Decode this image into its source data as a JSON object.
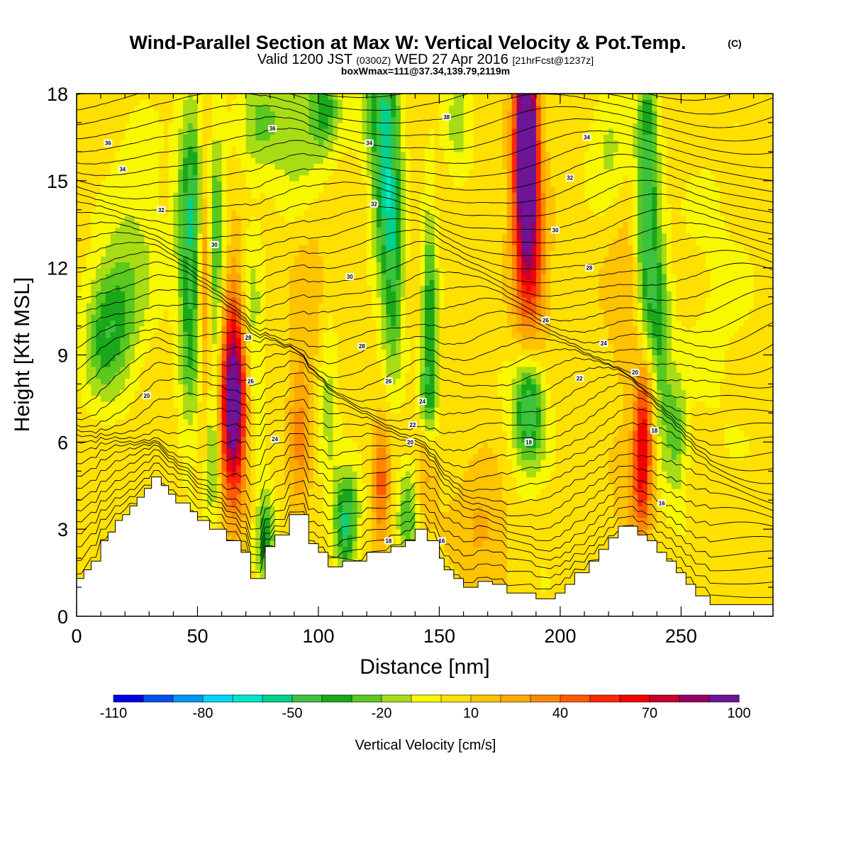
{
  "figure": {
    "title": "Wind-Parallel Section at Max W: Vertical Velocity & Pot.Temp.",
    "title_mark": "(C)",
    "subtitle_valid": "Valid 1200 JST",
    "subtitle_utc": "(0300Z)",
    "subtitle_date": "WED 27 Apr 2016",
    "subtitle_fcst": "[21hrFcst@1237z]",
    "boxwmax": "boxWmax=111@37.34,139.79,2119m",
    "colorbar_label": "Vertical Velocity [cm/s]"
  },
  "chart_data": {
    "type": "heatmap",
    "xlabel": "Distance [nm]",
    "ylabel": "Height [Kft MSL]",
    "xlim": [
      0,
      288
    ],
    "ylim": [
      0,
      18
    ],
    "x_ticks": [
      0,
      50,
      100,
      150,
      200,
      250
    ],
    "x_tick_labels": [
      "0",
      "50",
      "100",
      "150",
      "200",
      "250"
    ],
    "y_ticks": [
      0,
      3,
      6,
      9,
      12,
      15,
      18
    ],
    "y_tick_labels": [
      "0",
      "3",
      "6",
      "9",
      "12",
      "15",
      "18"
    ],
    "colorbar": {
      "levels": [
        -110,
        -100,
        -90,
        -80,
        -70,
        -60,
        -50,
        -40,
        -30,
        -20,
        -10,
        0,
        10,
        20,
        30,
        40,
        50,
        60,
        70,
        80,
        90,
        100
      ],
      "tick_values": [
        -110,
        -80,
        -50,
        -20,
        10,
        40,
        70,
        100
      ],
      "tick_labels": [
        "-110",
        "-80",
        "-50",
        "-20",
        "10",
        "40",
        "70",
        "100"
      ],
      "colors": [
        "#0000e6",
        "#0050f0",
        "#0096f5",
        "#00d7f8",
        "#00e6c8",
        "#00d28c",
        "#3cc23c",
        "#1aa81a",
        "#5ac81e",
        "#a8dc14",
        "#f8f800",
        "#ffe000",
        "#ffc300",
        "#ffa800",
        "#ff8800",
        "#ff5a00",
        "#ff2800",
        "#f50000",
        "#c8002d",
        "#960064",
        "#6e1496"
      ]
    },
    "background_value": 5,
    "terrain": [
      [
        0,
        1.3
      ],
      [
        3,
        1.3
      ],
      [
        3,
        1.6
      ],
      [
        6,
        1.6
      ],
      [
        6,
        1.9
      ],
      [
        10,
        1.9
      ],
      [
        10,
        2.6
      ],
      [
        13,
        2.6
      ],
      [
        13,
        2.9
      ],
      [
        16,
        2.9
      ],
      [
        16,
        3.3
      ],
      [
        19,
        3.3
      ],
      [
        19,
        3.5
      ],
      [
        22,
        3.5
      ],
      [
        22,
        3.8
      ],
      [
        25,
        3.8
      ],
      [
        25,
        4.1
      ],
      [
        28,
        4.1
      ],
      [
        28,
        4.4
      ],
      [
        31,
        4.4
      ],
      [
        31,
        4.8
      ],
      [
        35,
        4.8
      ],
      [
        35,
        4.5
      ],
      [
        38,
        4.5
      ],
      [
        38,
        4.2
      ],
      [
        41,
        4.2
      ],
      [
        41,
        3.9
      ],
      [
        47,
        3.9
      ],
      [
        47,
        3.6
      ],
      [
        50,
        3.6
      ],
      [
        50,
        3.3
      ],
      [
        55,
        3.3
      ],
      [
        55,
        3.0
      ],
      [
        62,
        3.0
      ],
      [
        62,
        2.6
      ],
      [
        68,
        2.6
      ],
      [
        68,
        2.2
      ],
      [
        72,
        2.2
      ],
      [
        72,
        1.3
      ],
      [
        78,
        1.3
      ],
      [
        78,
        2.4
      ],
      [
        82,
        2.4
      ],
      [
        82,
        2.8
      ],
      [
        88,
        2.8
      ],
      [
        88,
        3.5
      ],
      [
        96,
        3.5
      ],
      [
        96,
        2.5
      ],
      [
        100,
        2.5
      ],
      [
        100,
        2.2
      ],
      [
        104,
        2.2
      ],
      [
        104,
        1.7
      ],
      [
        110,
        1.7
      ],
      [
        110,
        1.9
      ],
      [
        120,
        1.9
      ],
      [
        120,
        2.2
      ],
      [
        130,
        2.2
      ],
      [
        130,
        2.4
      ],
      [
        136,
        2.4
      ],
      [
        136,
        2.6
      ],
      [
        140,
        2.6
      ],
      [
        140,
        3.0
      ],
      [
        145,
        3.0
      ],
      [
        145,
        2.6
      ],
      [
        150,
        2.6
      ],
      [
        150,
        2.0
      ],
      [
        152,
        2.0
      ],
      [
        152,
        1.6
      ],
      [
        156,
        1.6
      ],
      [
        156,
        1.3
      ],
      [
        160,
        1.3
      ],
      [
        160,
        1.0
      ],
      [
        166,
        1.0
      ],
      [
        166,
        1.2
      ],
      [
        172,
        1.2
      ],
      [
        172,
        1.1
      ],
      [
        178,
        1.1
      ],
      [
        178,
        0.8
      ],
      [
        190,
        0.8
      ],
      [
        190,
        0.6
      ],
      [
        198,
        0.6
      ],
      [
        198,
        0.8
      ],
      [
        202,
        0.8
      ],
      [
        202,
        1.1
      ],
      [
        206,
        1.1
      ],
      [
        206,
        1.5
      ],
      [
        212,
        1.5
      ],
      [
        212,
        1.9
      ],
      [
        216,
        1.9
      ],
      [
        216,
        2.3
      ],
      [
        220,
        2.3
      ],
      [
        220,
        2.7
      ],
      [
        224,
        2.7
      ],
      [
        224,
        3.1
      ],
      [
        232,
        3.1
      ],
      [
        232,
        2.8
      ],
      [
        236,
        2.8
      ],
      [
        236,
        2.6
      ],
      [
        240,
        2.6
      ],
      [
        240,
        2.2
      ],
      [
        244,
        2.2
      ],
      [
        244,
        1.9
      ],
      [
        248,
        1.9
      ],
      [
        248,
        1.5
      ],
      [
        252,
        1.5
      ],
      [
        252,
        1.1
      ],
      [
        256,
        1.1
      ],
      [
        256,
        0.7
      ],
      [
        262,
        0.7
      ],
      [
        262,
        0.4
      ],
      [
        288,
        0.4
      ]
    ],
    "w_features": [
      {
        "x": 15,
        "z": 10.3,
        "sx": 7,
        "sz": 1.6,
        "w": -35
      },
      {
        "x": 25,
        "z": 13.2,
        "sx": 8,
        "sz": 2.6,
        "w": -15
      },
      {
        "x": 10,
        "z": 9.0,
        "sx": 6,
        "sz": 1.5,
        "w": -14
      },
      {
        "x": 47,
        "z": 11.6,
        "sx": 3.5,
        "sz": 3.6,
        "w": -45
      },
      {
        "x": 49,
        "z": 15.0,
        "sx": 5,
        "sz": 2.2,
        "w": -22
      },
      {
        "x": 53,
        "z": 12.3,
        "sx": 1.8,
        "sz": 3.4,
        "w": 45
      },
      {
        "x": 58,
        "z": 11.5,
        "sx": 3,
        "sz": 3.4,
        "w": -40
      },
      {
        "x": 56,
        "z": 5.3,
        "sx": 2,
        "sz": 1.3,
        "w": -32
      },
      {
        "x": 65,
        "z": 7.0,
        "sx": 3.8,
        "sz": 2.2,
        "w": 85
      },
      {
        "x": 64,
        "z": 9.2,
        "sx": 4.5,
        "sz": 2.6,
        "w": 35
      },
      {
        "x": 72,
        "z": 9.5,
        "sx": 3.5,
        "sz": 2.8,
        "w": -25
      },
      {
        "x": 78,
        "z": 2.7,
        "sx": 2.8,
        "sz": 1.1,
        "w": -45
      },
      {
        "x": 76,
        "z": 17.0,
        "sx": 6,
        "sz": 1.3,
        "w": -22
      },
      {
        "x": 92,
        "z": 6.2,
        "sx": 3,
        "sz": 2.2,
        "w": 25
      },
      {
        "x": 97,
        "z": 10.5,
        "sx": 5,
        "sz": 2.4,
        "w": 12
      },
      {
        "x": 92,
        "z": 17.0,
        "sx": 8,
        "sz": 1.8,
        "w": -25
      },
      {
        "x": 103,
        "z": 17.5,
        "sx": 4,
        "sz": 1.0,
        "w": -32
      },
      {
        "x": 111,
        "z": 2.8,
        "sx": 3,
        "sz": 1.0,
        "w": -40
      },
      {
        "x": 112,
        "z": 3.8,
        "sx": 4,
        "sz": 1.0,
        "w": -30
      },
      {
        "x": 104,
        "z": 7.5,
        "sx": 3,
        "sz": 2.2,
        "w": -20
      },
      {
        "x": 126,
        "z": 4.5,
        "sx": 2.4,
        "sz": 1.5,
        "w": 40
      },
      {
        "x": 128,
        "z": 15.5,
        "sx": 4,
        "sz": 2.8,
        "w": -55
      },
      {
        "x": 131,
        "z": 11.5,
        "sx": 3,
        "sz": 2.4,
        "w": -35
      },
      {
        "x": 124,
        "z": 17.5,
        "sx": 6,
        "sz": 1.2,
        "w": -22
      },
      {
        "x": 137,
        "z": 3.5,
        "sx": 3,
        "sz": 1.3,
        "w": -32
      },
      {
        "x": 146,
        "z": 10.0,
        "sx": 2.2,
        "sz": 3.0,
        "w": -42
      },
      {
        "x": 145,
        "z": 7.3,
        "sx": 3,
        "sz": 1.2,
        "w": -25
      },
      {
        "x": 145,
        "z": 5.4,
        "sx": 3,
        "sz": 1.4,
        "w": 30
      },
      {
        "x": 158,
        "z": 17.0,
        "sx": 4,
        "sz": 1.6,
        "w": -18
      },
      {
        "x": 168,
        "z": 3.0,
        "sx": 8,
        "sz": 1.6,
        "w": 18
      },
      {
        "x": 186,
        "z": 16.7,
        "sx": 3,
        "sz": 2.4,
        "w": 115
      },
      {
        "x": 186,
        "z": 13.8,
        "sx": 4.2,
        "sz": 2.8,
        "w": 55
      },
      {
        "x": 190,
        "z": 11.8,
        "sx": 4,
        "sz": 1.6,
        "w": 22
      },
      {
        "x": 187,
        "z": 7.3,
        "sx": 4,
        "sz": 1.2,
        "w": -42
      },
      {
        "x": 186,
        "z": 6.5,
        "sx": 6.5,
        "sz": 1.6,
        "w": -18
      },
      {
        "x": 220,
        "z": 16.2,
        "sx": 6,
        "sz": 1.4,
        "w": -18
      },
      {
        "x": 236,
        "z": 14.0,
        "sx": 3,
        "sz": 3.8,
        "w": -55
      },
      {
        "x": 241,
        "z": 9.0,
        "sx": 3,
        "sz": 2.8,
        "w": -42
      },
      {
        "x": 248,
        "z": 6.2,
        "sx": 3,
        "sz": 1.6,
        "w": -28
      },
      {
        "x": 234,
        "z": 5.8,
        "sx": 2.6,
        "sz": 1.8,
        "w": 62
      },
      {
        "x": 238,
        "z": 7.5,
        "sx": 3,
        "sz": 1.8,
        "w": 28
      },
      {
        "x": 227,
        "z": 11.0,
        "sx": 6,
        "sz": 2.0,
        "w": 14
      },
      {
        "x": 230,
        "z": 4.5,
        "sx": 6,
        "sz": 1.5,
        "w": 14
      },
      {
        "x": 193,
        "z": 1.7,
        "sx": 4,
        "sz": 0.8,
        "w": -6
      },
      {
        "x": 265,
        "z": 11.0,
        "sx": 12,
        "sz": 4.5,
        "w": -7
      }
    ],
    "theta_contours": {
      "levels": [
        16,
        18,
        20,
        22,
        24,
        26,
        28,
        30,
        32,
        34,
        36,
        38
      ],
      "labels": [
        {
          "text": "36",
          "x": 13,
          "z": 16.3
        },
        {
          "text": "34",
          "x": 19,
          "z": 15.4
        },
        {
          "text": "32",
          "x": 35,
          "z": 14.0
        },
        {
          "text": "30",
          "x": 57,
          "z": 12.8
        },
        {
          "text": "28",
          "x": 71,
          "z": 9.6
        },
        {
          "text": "26",
          "x": 72,
          "z": 8.1
        },
        {
          "text": "20",
          "x": 29,
          "z": 7.6
        },
        {
          "text": "24",
          "x": 82,
          "z": 6.1
        },
        {
          "text": "36",
          "x": 81,
          "z": 16.8
        },
        {
          "text": "34",
          "x": 121,
          "z": 16.3
        },
        {
          "text": "38",
          "x": 153,
          "z": 17.2
        },
        {
          "text": "32",
          "x": 123,
          "z": 14.2
        },
        {
          "text": "30",
          "x": 113,
          "z": 11.7
        },
        {
          "text": "28",
          "x": 118,
          "z": 9.3
        },
        {
          "text": "26",
          "x": 129,
          "z": 8.1
        },
        {
          "text": "24",
          "x": 143,
          "z": 7.4
        },
        {
          "text": "22",
          "x": 139,
          "z": 6.6
        },
        {
          "text": "20",
          "x": 138,
          "z": 6.0
        },
        {
          "text": "18",
          "x": 129,
          "z": 2.6
        },
        {
          "text": "16",
          "x": 151,
          "z": 2.6
        },
        {
          "text": "18",
          "x": 187,
          "z": 6.0
        },
        {
          "text": "34",
          "x": 211,
          "z": 16.5
        },
        {
          "text": "32",
          "x": 204,
          "z": 15.1
        },
        {
          "text": "30",
          "x": 198,
          "z": 13.3
        },
        {
          "text": "28",
          "x": 212,
          "z": 12.0
        },
        {
          "text": "26",
          "x": 194,
          "z": 10.2
        },
        {
          "text": "24",
          "x": 218,
          "z": 9.4
        },
        {
          "text": "22",
          "x": 208,
          "z": 8.2
        },
        {
          "text": "20",
          "x": 231,
          "z": 8.4
        },
        {
          "text": "18",
          "x": 239,
          "z": 6.4
        },
        {
          "text": "16",
          "x": 242,
          "z": 3.9
        }
      ]
    }
  }
}
